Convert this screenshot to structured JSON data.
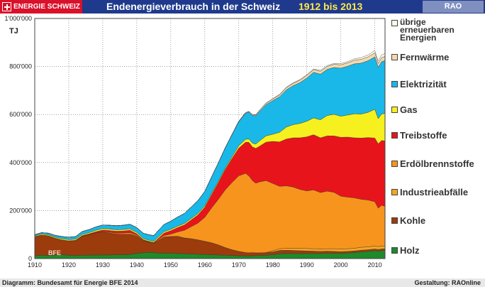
{
  "header": {
    "brand": "ENERGIE SCHWEIZ",
    "title": "Endenergieverbrauch in der Schweiz",
    "period": "1912 bis 2013",
    "rao": "RAO"
  },
  "footer": {
    "source": "Diagramm: Bundesamt für Energie BFE 2014",
    "credit": "Gestaltung: RAOnline"
  },
  "chart_data": {
    "type": "area",
    "stacked": true,
    "unit_label": "TJ",
    "watermark": "BFE",
    "xlim": [
      1910,
      2013
    ],
    "ylim": [
      0,
      1000000
    ],
    "x_ticks": [
      1910,
      1920,
      1930,
      1940,
      1950,
      1960,
      1970,
      1980,
      1990,
      2000,
      2010
    ],
    "y_ticks": [
      0,
      200000,
      400000,
      600000,
      800000,
      1000000
    ],
    "y_tick_labels": [
      "0",
      "200'000",
      "400'000",
      "600'000",
      "800'000",
      "1'000'000"
    ],
    "grid": true,
    "legend_position": "right",
    "x": [
      1910,
      1912,
      1914,
      1916,
      1918,
      1920,
      1922,
      1924,
      1926,
      1928,
      1930,
      1932,
      1934,
      1936,
      1938,
      1940,
      1942,
      1944,
      1945,
      1946,
      1948,
      1950,
      1952,
      1954,
      1956,
      1958,
      1960,
      1962,
      1964,
      1966,
      1968,
      1970,
      1972,
      1973,
      1974,
      1975,
      1976,
      1978,
      1980,
      1982,
      1984,
      1986,
      1988,
      1990,
      1992,
      1994,
      1996,
      1998,
      2000,
      2002,
      2004,
      2006,
      2008,
      2010,
      2011,
      2012,
      2013
    ],
    "series": [
      {
        "name": "Holz",
        "color": "#1e8a2a",
        "values": [
          12000,
          14000,
          13000,
          15000,
          16000,
          14000,
          13000,
          14000,
          14000,
          15000,
          15000,
          15000,
          16000,
          16000,
          17000,
          22000,
          24000,
          26000,
          25000,
          23000,
          22000,
          22000,
          21000,
          20000,
          19000,
          18000,
          17000,
          16000,
          15000,
          14000,
          13000,
          12000,
          11000,
          11000,
          12000,
          12000,
          13000,
          14000,
          16000,
          20000,
          21000,
          21000,
          21000,
          21000,
          21000,
          21000,
          22000,
          22000,
          22000,
          23000,
          25000,
          28000,
          30000,
          33000,
          31000,
          33000,
          34000
        ]
      },
      {
        "name": "Kohle",
        "color": "#9c3b0c",
        "values": [
          80000,
          84000,
          82000,
          70000,
          62000,
          60000,
          62000,
          80000,
          86000,
          92000,
          96000,
          92000,
          86000,
          85000,
          85000,
          72000,
          50000,
          42000,
          40000,
          50000,
          68000,
          70000,
          72000,
          66000,
          64000,
          60000,
          55000,
          50000,
          42000,
          32000,
          24000,
          18000,
          14000,
          13000,
          13000,
          12000,
          11000,
          11000,
          12000,
          14000,
          14000,
          13000,
          12000,
          11000,
          10000,
          9000,
          9000,
          8000,
          7000,
          7000,
          7000,
          7000,
          7000,
          7000,
          7000,
          7000,
          7000
        ]
      },
      {
        "name": "Industrieabfälle",
        "color": "#f5a623",
        "values": [
          0,
          0,
          0,
          0,
          0,
          0,
          0,
          0,
          0,
          0,
          0,
          0,
          0,
          0,
          0,
          0,
          0,
          0,
          0,
          0,
          0,
          0,
          0,
          0,
          0,
          0,
          0,
          0,
          0,
          0,
          0,
          0,
          0,
          0,
          0,
          0,
          0,
          0,
          5000,
          7000,
          8000,
          9000,
          10000,
          10000,
          10000,
          10000,
          10000,
          11000,
          11000,
          11000,
          11000,
          12000,
          12000,
          12000,
          12000,
          12000,
          12000
        ]
      },
      {
        "name": "Erdölbrennstoffe",
        "color": "#f7941d",
        "values": [
          0,
          0,
          0,
          0,
          0,
          0,
          0,
          0,
          0,
          0,
          2000,
          3000,
          4000,
          5000,
          6000,
          4000,
          2000,
          1000,
          1000,
          3000,
          6000,
          10000,
          18000,
          32000,
          50000,
          70000,
          100000,
          145000,
          190000,
          240000,
          280000,
          315000,
          330000,
          320000,
          300000,
          290000,
          295000,
          300000,
          280000,
          260000,
          260000,
          255000,
          245000,
          240000,
          245000,
          235000,
          240000,
          235000,
          220000,
          215000,
          210000,
          200000,
          195000,
          185000,
          160000,
          170000,
          165000
        ]
      },
      {
        "name": "Treibstoffe",
        "color": "#e8141c",
        "values": [
          0,
          0,
          0,
          0,
          0,
          0,
          1000,
          2000,
          3000,
          5000,
          6000,
          7000,
          8000,
          9000,
          10000,
          5000,
          2000,
          1000,
          1000,
          4000,
          10000,
          14000,
          18000,
          22000,
          28000,
          34000,
          42000,
          55000,
          70000,
          85000,
          100000,
          115000,
          130000,
          140000,
          140000,
          145000,
          148000,
          160000,
          175000,
          185000,
          195000,
          205000,
          215000,
          225000,
          230000,
          228000,
          230000,
          235000,
          245000,
          250000,
          250000,
          255000,
          260000,
          265000,
          268000,
          270000,
          272000
        ]
      },
      {
        "name": "Gas",
        "color": "#f6f01e",
        "values": [
          3000,
          4000,
          4000,
          4000,
          5000,
          5000,
          5000,
          5000,
          5000,
          6000,
          6000,
          6000,
          6000,
          6000,
          6000,
          6000,
          5000,
          5000,
          5000,
          6000,
          6000,
          6000,
          6000,
          6000,
          6000,
          6000,
          6000,
          6000,
          6000,
          6000,
          7000,
          10000,
          12000,
          14000,
          16000,
          18000,
          22000,
          26000,
          30000,
          40000,
          50000,
          55000,
          60000,
          65000,
          70000,
          75000,
          85000,
          90000,
          88000,
          92000,
          100000,
          100000,
          105000,
          120000,
          105000,
          110000,
          115000
        ]
      },
      {
        "name": "Elektrizität",
        "color": "#1ab8e8",
        "values": [
          5000,
          6000,
          7000,
          8000,
          9000,
          10000,
          11000,
          12000,
          13000,
          14000,
          15000,
          16000,
          17000,
          18000,
          19000,
          20000,
          22000,
          23000,
          24000,
          26000,
          30000,
          34000,
          38000,
          42000,
          48000,
          54000,
          60000,
          68000,
          76000,
          84000,
          92000,
          100000,
          108000,
          112000,
          115000,
          118000,
          122000,
          130000,
          140000,
          148000,
          155000,
          162000,
          170000,
          180000,
          190000,
          190000,
          192000,
          195000,
          200000,
          203000,
          208000,
          212000,
          215000,
          218000,
          214000,
          218000,
          220000
        ]
      },
      {
        "name": "Fernwärme",
        "color": "#f3d9b0",
        "values": [
          0,
          0,
          0,
          0,
          0,
          0,
          0,
          0,
          0,
          0,
          0,
          0,
          0,
          0,
          0,
          0,
          0,
          0,
          0,
          0,
          0,
          0,
          0,
          0,
          0,
          0,
          0,
          0,
          0,
          0,
          1000,
          2000,
          3000,
          3000,
          4000,
          4000,
          5000,
          6000,
          7000,
          8000,
          9000,
          10000,
          10000,
          11000,
          11000,
          12000,
          12000,
          13000,
          14000,
          14000,
          15000,
          16000,
          16000,
          17000,
          16000,
          17000,
          17000
        ]
      },
      {
        "name": "übrige erneuerbaren Energien",
        "color": "#fffbe6",
        "values": [
          0,
          0,
          0,
          0,
          0,
          0,
          0,
          0,
          0,
          0,
          0,
          0,
          0,
          0,
          0,
          0,
          0,
          0,
          0,
          0,
          0,
          0,
          0,
          0,
          0,
          0,
          0,
          0,
          0,
          0,
          0,
          0,
          0,
          0,
          0,
          0,
          0,
          1000,
          1000,
          2000,
          2000,
          2000,
          3000,
          3000,
          3000,
          4000,
          4000,
          4000,
          5000,
          5000,
          6000,
          7000,
          8000,
          10000,
          10000,
          11000,
          12000
        ]
      }
    ]
  }
}
